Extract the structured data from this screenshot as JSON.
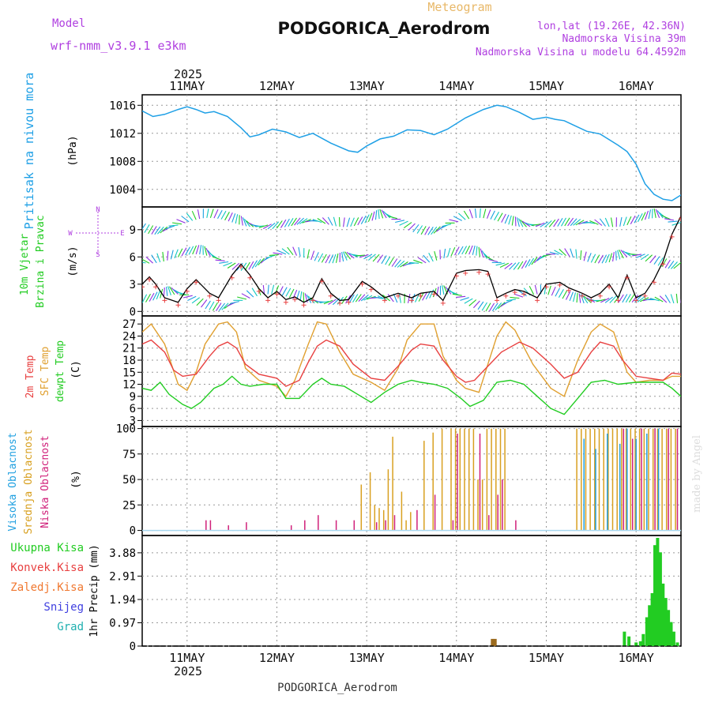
{
  "header": {
    "subtitle": "Meteogram",
    "title": "PODGORICA_Aerodrom",
    "model_label": "Model",
    "model_name": "wrf-nmm_v3.9.1 e3km",
    "coords": "lon,lat (19.26E, 42.36N)",
    "elevation": "Nadmorska Visina 39m",
    "model_elevation": "Nadmorska Visina u modelu 64.4592m"
  },
  "footer": {
    "station": "PODGORICA_Aerodrom",
    "watermark": "made by Angel"
  },
  "colors": {
    "pressure": "#1fa0e6",
    "wind_label": "#22cc22",
    "temp2m": "#e84040",
    "sfc": "#e0a030",
    "dewpt": "#22cc22",
    "high_cloud": "#20a0e0",
    "mid_cloud": "#d8a020",
    "low_cloud": "#d0207a",
    "purple": "#b040e0"
  },
  "chart_data": [
    {
      "type": "line",
      "panel": "pressure",
      "ylabel": "Pritisak na nivou mora",
      "unit": "(hPa)",
      "year": "2025",
      "x_days": [
        "11MAY",
        "12MAY",
        "13MAY",
        "14MAY",
        "15MAY",
        "16MAY"
      ],
      "xlim": [
        -0.5,
        5.5
      ],
      "ylim": [
        1001.5,
        1017.5
      ],
      "yticks": [
        "1016",
        "1012",
        "1008",
        "1004"
      ],
      "ytick_values": [
        1016,
        1012,
        1008,
        1004
      ],
      "series": [
        {
          "name": "MSLP",
          "x": [
            -0.5,
            -0.38,
            -0.25,
            -0.1,
            0.0,
            0.1,
            0.2,
            0.3,
            0.45,
            0.6,
            0.7,
            0.8,
            0.95,
            1.1,
            1.25,
            1.4,
            1.6,
            1.8,
            1.9,
            2.0,
            2.15,
            2.3,
            2.45,
            2.6,
            2.75,
            2.9,
            3.1,
            3.3,
            3.45,
            3.55,
            3.7,
            3.85,
            4.0,
            4.1,
            4.2,
            4.3,
            4.45,
            4.6,
            4.8,
            4.9,
            5.0,
            5.1,
            5.2,
            5.3,
            5.4,
            5.5
          ],
          "values": [
            1015.2,
            1014.4,
            1014.7,
            1015.4,
            1015.8,
            1015.4,
            1014.9,
            1015.1,
            1014.4,
            1012.8,
            1011.5,
            1011.8,
            1012.6,
            1012.2,
            1011.4,
            1012.0,
            1010.6,
            1009.5,
            1009.3,
            1010.2,
            1011.2,
            1011.6,
            1012.5,
            1012.4,
            1011.8,
            1012.6,
            1014.2,
            1015.4,
            1016.0,
            1015.8,
            1015.0,
            1014.0,
            1014.3,
            1014.0,
            1013.8,
            1013.2,
            1012.3,
            1011.9,
            1010.3,
            1009.4,
            1007.6,
            1004.8,
            1003.3,
            1002.6,
            1002.4,
            1003.2
          ]
        }
      ]
    },
    {
      "type": "line",
      "panel": "wind",
      "ylabel": "10m Vjetar Brzina i Pravac",
      "unit": "(m/s)",
      "compass": [
        "N",
        "W",
        "E",
        "S"
      ],
      "xlim": [
        -0.5,
        5.5
      ],
      "ylim": [
        -0.5,
        11.5
      ],
      "yticks": [
        "9",
        "6",
        "3",
        "0"
      ],
      "ytick_values": [
        9,
        6,
        3,
        0
      ],
      "series": [
        {
          "name": "wind speed 10m",
          "x": [
            -0.5,
            -0.42,
            -0.35,
            -0.25,
            -0.1,
            0.0,
            0.1,
            0.25,
            0.35,
            0.5,
            0.6,
            0.7,
            0.8,
            0.9,
            1.0,
            1.1,
            1.2,
            1.3,
            1.4,
            1.5,
            1.6,
            1.7,
            1.8,
            1.95,
            2.05,
            2.2,
            2.35,
            2.5,
            2.6,
            2.75,
            2.85,
            3.0,
            3.1,
            3.25,
            3.35,
            3.45,
            3.55,
            3.65,
            3.75,
            3.9,
            4.0,
            4.15,
            4.25,
            4.4,
            4.5,
            4.6,
            4.7,
            4.8,
            4.9,
            5.0,
            5.1,
            5.2,
            5.3,
            5.4,
            5.5
          ],
          "values": [
            3.0,
            3.8,
            3.0,
            1.5,
            1.0,
            2.5,
            3.5,
            2.0,
            1.5,
            4.0,
            5.2,
            4.0,
            2.5,
            1.5,
            2.2,
            1.3,
            1.6,
            1.0,
            1.5,
            3.6,
            2.0,
            1.2,
            1.3,
            3.3,
            2.7,
            1.5,
            2.0,
            1.5,
            2.0,
            2.2,
            1.2,
            4.2,
            4.5,
            4.6,
            4.4,
            1.5,
            2.0,
            2.4,
            2.2,
            1.5,
            3.0,
            3.2,
            2.6,
            2.0,
            1.5,
            2.0,
            3.0,
            1.5,
            4.0,
            1.5,
            2.0,
            3.5,
            5.5,
            8.5,
            10.5
          ]
        }
      ]
    },
    {
      "type": "line",
      "panel": "temperature",
      "ylabel": "2m Temp SFC Temp dewpt Temp",
      "unit": "(C)",
      "xlim": [
        -0.5,
        5.5
      ],
      "ylim": [
        1.5,
        29.0
      ],
      "yticks": [
        "27",
        "24",
        "21",
        "18",
        "15",
        "12",
        "9",
        "6",
        "3"
      ],
      "ytick_values": [
        27,
        24,
        21,
        18,
        15,
        12,
        9,
        6,
        3
      ],
      "series": [
        {
          "name": "2m Temp",
          "x": [
            -0.5,
            -0.4,
            -0.25,
            -0.15,
            -0.05,
            0.1,
            0.25,
            0.35,
            0.45,
            0.55,
            0.65,
            0.8,
            1.0,
            1.1,
            1.25,
            1.35,
            1.45,
            1.55,
            1.7,
            1.85,
            2.05,
            2.2,
            2.35,
            2.5,
            2.6,
            2.75,
            2.85,
            3.0,
            3.1,
            3.2,
            3.35,
            3.5,
            3.7,
            3.85,
            4.05,
            4.2,
            4.35,
            4.5,
            4.6,
            4.75,
            4.85,
            5.0,
            5.15,
            5.3,
            5.4,
            5.5
          ],
          "values": [
            22.0,
            23.0,
            20.0,
            15.5,
            14.0,
            14.5,
            19.0,
            21.5,
            22.5,
            21.0,
            17.0,
            14.5,
            13.5,
            11.5,
            13.0,
            17.5,
            21.5,
            23.0,
            21.5,
            17.0,
            13.5,
            13.0,
            16.5,
            20.5,
            22.0,
            21.5,
            18.0,
            14.0,
            12.5,
            13.0,
            16.5,
            20.0,
            22.5,
            21.0,
            17.0,
            13.5,
            15.0,
            20.0,
            22.5,
            21.5,
            18.0,
            14.0,
            13.5,
            13.0,
            14.8,
            14.5
          ]
        },
        {
          "name": "SFC Temp",
          "x": [
            -0.5,
            -0.4,
            -0.25,
            -0.1,
            0.0,
            0.1,
            0.2,
            0.35,
            0.45,
            0.55,
            0.65,
            0.8,
            1.0,
            1.1,
            1.2,
            1.35,
            1.45,
            1.55,
            1.7,
            1.85,
            2.05,
            2.2,
            2.35,
            2.45,
            2.6,
            2.75,
            2.85,
            3.0,
            3.1,
            3.25,
            3.35,
            3.45,
            3.55,
            3.65,
            3.85,
            4.05,
            4.2,
            4.35,
            4.5,
            4.6,
            4.75,
            4.9,
            5.0,
            5.15,
            5.3,
            5.4,
            5.5
          ],
          "values": [
            25.0,
            27.0,
            22.0,
            12.0,
            10.5,
            15.0,
            22.0,
            27.0,
            27.5,
            25.0,
            16.0,
            13.0,
            11.5,
            9.0,
            13.0,
            22.0,
            27.5,
            27.0,
            20.0,
            14.5,
            12.5,
            10.5,
            16.0,
            23.0,
            27.0,
            27.0,
            19.0,
            13.0,
            11.0,
            10.0,
            17.0,
            24.0,
            27.5,
            25.5,
            17.0,
            11.0,
            9.0,
            18.0,
            25.0,
            27.0,
            25.0,
            15.0,
            12.5,
            13.0,
            13.0,
            14.0,
            14.0
          ]
        },
        {
          "name": "dewpt Temp",
          "x": [
            -0.5,
            -0.4,
            -0.3,
            -0.2,
            -0.05,
            0.05,
            0.15,
            0.3,
            0.4,
            0.5,
            0.6,
            0.7,
            0.85,
            1.0,
            1.1,
            1.25,
            1.4,
            1.5,
            1.6,
            1.75,
            1.9,
            2.05,
            2.2,
            2.35,
            2.5,
            2.6,
            2.75,
            2.9,
            3.05,
            3.15,
            3.3,
            3.45,
            3.6,
            3.75,
            3.9,
            4.05,
            4.2,
            4.35,
            4.5,
            4.65,
            4.8,
            5.0,
            5.15,
            5.3,
            5.4,
            5.5
          ],
          "values": [
            11.0,
            10.5,
            12.5,
            9.5,
            7.0,
            6.0,
            7.5,
            11.0,
            12.0,
            14.0,
            12.0,
            11.5,
            12.0,
            12.0,
            8.5,
            8.5,
            12.0,
            13.5,
            12.0,
            11.5,
            9.5,
            7.5,
            10.0,
            12.0,
            13.0,
            12.5,
            12.0,
            11.0,
            8.5,
            6.5,
            8.0,
            12.5,
            13.0,
            12.0,
            9.0,
            6.0,
            4.5,
            8.5,
            12.5,
            13.0,
            12.0,
            12.5,
            12.5,
            12.5,
            11.0,
            9.0
          ]
        }
      ]
    },
    {
      "type": "bar",
      "panel": "cloud",
      "ylabel": "Visoka Oblacnost Srednja Oblacnost Niska Oblacnost",
      "unit": "(%)",
      "xlim": [
        -0.5,
        5.5
      ],
      "ylim": [
        -5,
        102
      ],
      "yticks": [
        "100",
        "75",
        "50",
        "25",
        "0"
      ],
      "ytick_values": [
        100,
        75,
        50,
        25,
        0
      ],
      "series": [
        {
          "name": "Srednja Oblacnost",
          "x": [
            1.95,
            2.05,
            2.1,
            2.15,
            2.2,
            2.25,
            2.3,
            2.4,
            2.45,
            2.5,
            2.65,
            2.75,
            2.85,
            2.95,
            3.0,
            3.05,
            3.1,
            3.15,
            3.2,
            3.25,
            3.3,
            3.35,
            3.4,
            3.45,
            3.5,
            3.55,
            4.35,
            4.4,
            4.45,
            4.5,
            4.55,
            4.6,
            4.65,
            4.7,
            4.75,
            4.8,
            4.85,
            4.9,
            4.95,
            5.0,
            5.05,
            5.1,
            5.15,
            5.2,
            5.25,
            5.3,
            5.35,
            5.4,
            5.45
          ],
          "values": [
            45,
            57,
            25,
            22,
            20,
            60,
            92,
            38,
            10,
            18,
            88,
            96,
            100,
            100,
            100,
            100,
            100,
            100,
            100,
            50,
            50,
            100,
            100,
            100,
            100,
            100,
            100,
            100,
            100,
            100,
            100,
            100,
            100,
            100,
            100,
            100,
            100,
            100,
            100,
            100,
            100,
            100,
            100,
            100,
            100,
            100,
            100,
            100,
            100
          ]
        },
        {
          "name": "Niska Oblacnost",
          "x": [
            0.2,
            0.25,
            0.45,
            0.65,
            1.15,
            1.3,
            1.45,
            1.65,
            1.85,
            2.1,
            2.2,
            2.3,
            2.55,
            2.75,
            2.95,
            3.0,
            3.25,
            3.35,
            3.45,
            3.5,
            3.65,
            4.85,
            4.95,
            5.05,
            5.2,
            5.35,
            5.45
          ],
          "values": [
            10,
            10,
            5,
            8,
            5,
            10,
            15,
            10,
            10,
            8,
            10,
            15,
            20,
            35,
            10,
            95,
            95,
            15,
            35,
            50,
            10,
            100,
            90,
            100,
            100,
            100,
            100
          ]
        },
        {
          "name": "Visoka Oblacnost",
          "x": [
            4.42,
            4.55,
            4.68,
            4.82,
            4.9,
            5.0,
            5.12,
            5.25
          ],
          "values": [
            90,
            80,
            95,
            85,
            100,
            90,
            95,
            100
          ]
        }
      ]
    },
    {
      "type": "bar",
      "panel": "precipitation",
      "ylabel": "1hr Precip (mm)",
      "legend": [
        "Ukupna Kisa",
        "Konvek.Kisa",
        "Zaledj.Kisa",
        "Snijeg",
        "Grad"
      ],
      "xlim": [
        -0.5,
        5.5
      ],
      "ylim": [
        0,
        4.6
      ],
      "yticks": [
        "3.88",
        "2.91",
        "1.94",
        "0.97",
        "0"
      ],
      "ytick_values": [
        3.88,
        2.91,
        1.94,
        0.97,
        0
      ],
      "series": [
        {
          "name": "Ukupna Kisa",
          "x": [
            4.87,
            4.92,
            5.0,
            5.05,
            5.08,
            5.12,
            5.15,
            5.18,
            5.21,
            5.24,
            5.27,
            5.3,
            5.33,
            5.36,
            5.39,
            5.42,
            5.46
          ],
          "values": [
            0.6,
            0.4,
            0.15,
            0.2,
            0.5,
            1.2,
            1.7,
            2.2,
            4.2,
            4.5,
            3.9,
            2.6,
            2.0,
            1.5,
            1.0,
            0.6,
            0.15
          ]
        },
        {
          "name": "Konvek.Kisa",
          "x": [
            3.4,
            3.43
          ],
          "values": [
            0.3,
            0.3
          ]
        }
      ]
    }
  ]
}
